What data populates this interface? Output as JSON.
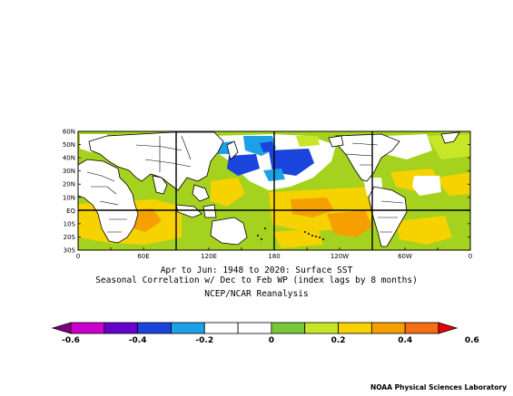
{
  "map": {
    "lat_ticks": [
      "60N",
      "50N",
      "40N",
      "30N",
      "20N",
      "10N",
      "EQ",
      "10S",
      "20S",
      "30S"
    ],
    "lon_ticks": [
      "0",
      "60E",
      "120E",
      "180",
      "120W",
      "60W",
      "0"
    ],
    "ocean_base_color": "#a5d21e"
  },
  "caption": {
    "line1": "Apr to Jun: 1948 to 2020: Surface SST",
    "line2": "Seasonal Correlation w/ Dec to Feb WP (index lags by 8 months)",
    "line3": "NCEP/NCAR Reanalysis"
  },
  "colorbar": {
    "colors": [
      "#7f0083",
      "#cc00cc",
      "#6600cc",
      "#1a44dc",
      "#1ea0e6",
      "#ffffff",
      "#ffffff",
      "#78c83c",
      "#c8e628",
      "#f5d200",
      "#f5a000",
      "#f56e14",
      "#e60000"
    ],
    "labels": [
      "-0.6",
      "-0.4",
      "-0.2",
      "0",
      "0.2",
      "0.4",
      "0.6"
    ]
  },
  "credit": "NOAA Physical Sciences Laboratory"
}
